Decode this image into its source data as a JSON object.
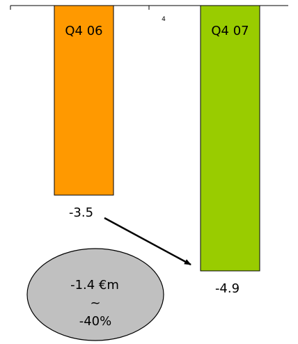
{
  "chart_data": {
    "type": "bar",
    "title": "",
    "xlabel": "",
    "ylabel": "",
    "categories": [
      "Q4 06",
      "Q4 07"
    ],
    "values": [
      -3.5,
      -4.9
    ],
    "value_labels": [
      "-3.5",
      "-4.9"
    ],
    "colors": [
      "#ff9900",
      "#99cc00"
    ],
    "axis_tick_label": "4",
    "ylim": [
      -4.9,
      0
    ],
    "grid": false,
    "legend": "none",
    "annotation": {
      "line1": "-1.4 €m",
      "line2": "~",
      "line3": "-40%",
      "fill": "#c0c0c0"
    }
  }
}
